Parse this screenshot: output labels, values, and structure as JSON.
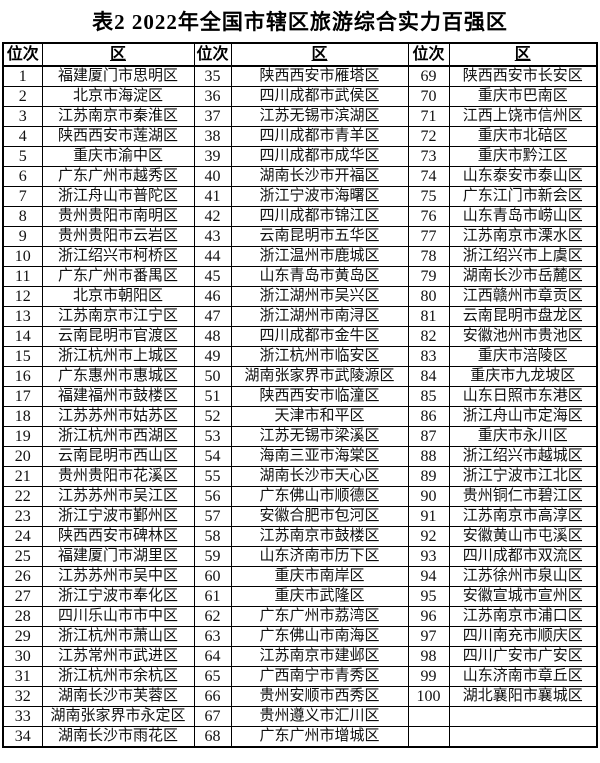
{
  "title": "表2  2022年全国市辖区旅游综合实力百强区",
  "colors": {
    "background": "#ffffff",
    "text": "#111111",
    "border": "#000000"
  },
  "table": {
    "header": [
      "位次",
      "区",
      "位次",
      "区",
      "位次",
      "区"
    ],
    "rows": [
      [
        "1",
        "福建厦门市思明区",
        "35",
        "陕西西安市雁塔区",
        "69",
        "陕西西安市长安区"
      ],
      [
        "2",
        "北京市海淀区",
        "36",
        "四川成都市武侯区",
        "70",
        "重庆市巴南区"
      ],
      [
        "3",
        "江苏南京市秦淮区",
        "37",
        "江苏无锡市滨湖区",
        "71",
        "江西上饶市信州区"
      ],
      [
        "4",
        "陕西西安市莲湖区",
        "38",
        "四川成都市青羊区",
        "72",
        "重庆市北碚区"
      ],
      [
        "5",
        "重庆市渝中区",
        "39",
        "四川成都市成华区",
        "73",
        "重庆市黔江区"
      ],
      [
        "6",
        "广东广州市越秀区",
        "40",
        "湖南长沙市开福区",
        "74",
        "山东泰安市泰山区"
      ],
      [
        "7",
        "浙江舟山市普陀区",
        "41",
        "浙江宁波市海曙区",
        "75",
        "广东江门市新会区"
      ],
      [
        "8",
        "贵州贵阳市南明区",
        "42",
        "四川成都市锦江区",
        "76",
        "山东青岛市崂山区"
      ],
      [
        "9",
        "贵州贵阳市云岩区",
        "43",
        "云南昆明市五华区",
        "77",
        "江苏南京市溧水区"
      ],
      [
        "10",
        "浙江绍兴市柯桥区",
        "44",
        "浙江温州市鹿城区",
        "78",
        "浙江绍兴市上虞区"
      ],
      [
        "11",
        "广东广州市番禺区",
        "45",
        "山东青岛市黄岛区",
        "79",
        "湖南长沙市岳麓区"
      ],
      [
        "12",
        "北京市朝阳区",
        "46",
        "浙江湖州市吴兴区",
        "80",
        "江西赣州市章贡区"
      ],
      [
        "13",
        "江苏南京市江宁区",
        "47",
        "浙江湖州市南浔区",
        "81",
        "云南昆明市盘龙区"
      ],
      [
        "14",
        "云南昆明市官渡区",
        "48",
        "四川成都市金牛区",
        "82",
        "安徽池州市贵池区"
      ],
      [
        "15",
        "浙江杭州市上城区",
        "49",
        "浙江杭州市临安区",
        "83",
        "重庆市涪陵区"
      ],
      [
        "16",
        "广东惠州市惠城区",
        "50",
        "湖南张家界市武陵源区",
        "84",
        "重庆市九龙坡区"
      ],
      [
        "17",
        "福建福州市鼓楼区",
        "51",
        "陕西西安市临潼区",
        "85",
        "山东日照市东港区"
      ],
      [
        "18",
        "江苏苏州市姑苏区",
        "52",
        "天津市和平区",
        "86",
        "浙江舟山市定海区"
      ],
      [
        "19",
        "浙江杭州市西湖区",
        "53",
        "江苏无锡市梁溪区",
        "87",
        "重庆市永川区"
      ],
      [
        "20",
        "云南昆明市西山区",
        "54",
        "海南三亚市海棠区",
        "88",
        "浙江绍兴市越城区"
      ],
      [
        "21",
        "贵州贵阳市花溪区",
        "55",
        "湖南长沙市天心区",
        "89",
        "浙江宁波市江北区"
      ],
      [
        "22",
        "江苏苏州市吴江区",
        "56",
        "广东佛山市顺德区",
        "90",
        "贵州铜仁市碧江区"
      ],
      [
        "23",
        "浙江宁波市鄞州区",
        "57",
        "安徽合肥市包河区",
        "91",
        "江苏南京市高淳区"
      ],
      [
        "24",
        "陕西西安市碑林区",
        "58",
        "江苏南京市鼓楼区",
        "92",
        "安徽黄山市屯溪区"
      ],
      [
        "25",
        "福建厦门市湖里区",
        "59",
        "山东济南市历下区",
        "93",
        "四川成都市双流区"
      ],
      [
        "26",
        "江苏苏州市吴中区",
        "60",
        "重庆市南岸区",
        "94",
        "江苏徐州市泉山区"
      ],
      [
        "27",
        "浙江宁波市奉化区",
        "61",
        "重庆市武隆区",
        "95",
        "安徽宣城市宣州区"
      ],
      [
        "28",
        "四川乐山市市中区",
        "62",
        "广东广州市荔湾区",
        "96",
        "江苏南京市浦口区"
      ],
      [
        "29",
        "浙江杭州市萧山区",
        "63",
        "广东佛山市南海区",
        "97",
        "四川南充市顺庆区"
      ],
      [
        "30",
        "江苏常州市武进区",
        "64",
        "江苏南京市建邺区",
        "98",
        "四川广安市广安区"
      ],
      [
        "31",
        "浙江杭州市余杭区",
        "65",
        "广西南宁市青秀区",
        "99",
        "山东济南市章丘区"
      ],
      [
        "32",
        "湖南长沙市芙蓉区",
        "66",
        "贵州安顺市西秀区",
        "100",
        "湖北襄阳市襄城区"
      ],
      [
        "33",
        "湖南张家界市永定区",
        "67",
        "贵州遵义市汇川区",
        "",
        ""
      ],
      [
        "34",
        "湖南长沙市雨花区",
        "68",
        "广东广州市增城区",
        "",
        ""
      ]
    ]
  }
}
